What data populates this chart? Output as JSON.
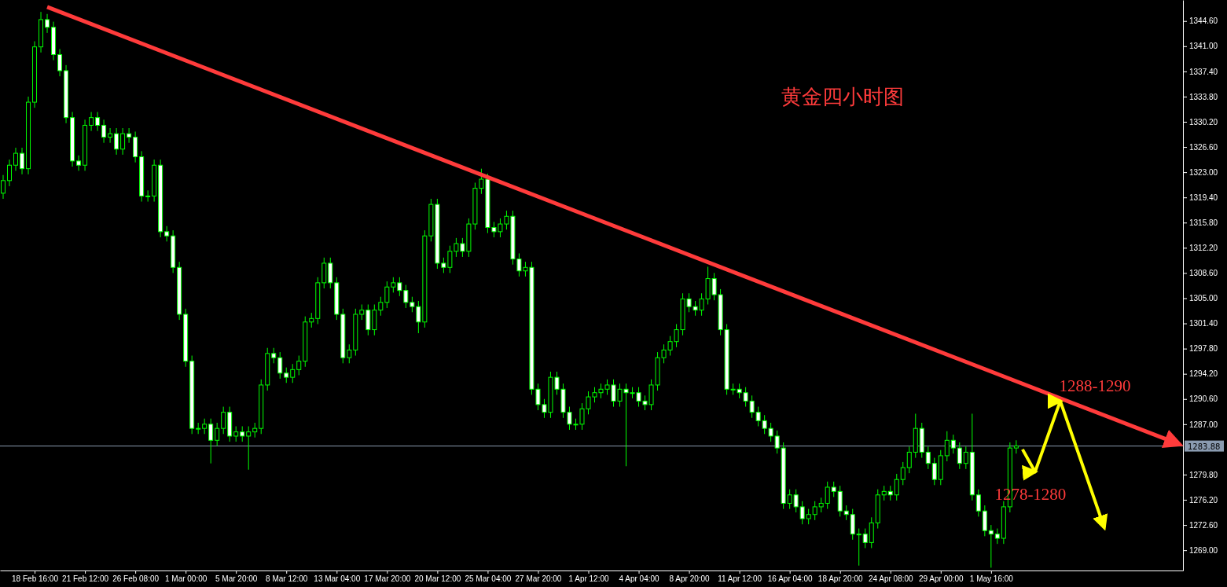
{
  "chart_data": {
    "type": "candlestick",
    "title": "黄金四小时图",
    "color": "#00ff00",
    "categories": [
      null,
      null,
      null,
      null,
      null,
      "18 Feb 16:00",
      null,
      null,
      null,
      null,
      null,
      null,
      null,
      "21 Feb 12:00",
      null,
      null,
      null,
      null,
      null,
      null,
      null,
      "26 Feb 08:00",
      null,
      null,
      null,
      null,
      null,
      null,
      null,
      "1 Mar 00:00",
      null,
      null,
      null,
      null,
      null,
      null,
      null,
      "5 Mar 20:00",
      null,
      null,
      null,
      null,
      null,
      null,
      null,
      "8 Mar 12:00",
      null,
      null,
      null,
      null,
      null,
      null,
      null,
      "13 Mar 04:00",
      null,
      null,
      null,
      null,
      null,
      null,
      null,
      "17 Mar 20:00",
      null,
      null,
      null,
      null,
      null,
      null,
      null,
      "20 Mar 12:00",
      null,
      null,
      null,
      null,
      null,
      null,
      null,
      "25 Mar 04:00",
      null,
      null,
      null,
      null,
      null,
      null,
      null,
      "27 Mar 20:00",
      null,
      null,
      null,
      null,
      null,
      null,
      null,
      "1 Apr 12:00",
      null,
      null,
      null,
      null,
      null,
      null,
      null,
      "4 Apr 04:00",
      null,
      null,
      null,
      null,
      null,
      null,
      null,
      "8 Apr 20:00",
      null,
      null,
      null,
      null,
      null,
      null,
      null,
      "11 Apr 12:00",
      null,
      null,
      null,
      null,
      null,
      null,
      null,
      "16 Apr 04:00",
      null,
      null,
      null,
      null,
      null,
      null,
      null,
      "18 Apr 20:00",
      null,
      null,
      null,
      null,
      null,
      null,
      null,
      "24 Apr 08:00",
      null,
      null,
      null,
      null,
      null,
      null,
      null,
      "29 Apr 00:00",
      null,
      null,
      null,
      null,
      null,
      null,
      null,
      "1 May 16:00",
      null,
      null,
      null,
      null,
      null,
      null,
      null,
      null,
      null,
      null,
      null,
      null,
      null,
      null,
      null,
      null,
      null,
      null,
      null,
      null,
      null,
      null,
      null,
      null,
      null,
      null,
      null,
      null,
      null,
      null
    ],
    "ohlc": [
      [
        1320.0,
        1322.6,
        1319.2,
        1321.8
      ],
      [
        1321.8,
        1324.8,
        1321.0,
        1324.0
      ],
      [
        1324.0,
        1326.5,
        1323.2,
        1325.7
      ],
      [
        1325.7,
        1326.5,
        1322.7,
        1323.5
      ],
      [
        1323.5,
        1333.8,
        1322.7,
        1333.0
      ],
      [
        1333.0,
        1341.7,
        1332.2,
        1340.9
      ],
      [
        1340.9,
        1345.9,
        1340.1,
        1344.8
      ],
      [
        1344.8,
        1345.6,
        1342.9,
        1343.7
      ],
      [
        1343.7,
        1344.5,
        1339.0,
        1339.8
      ],
      [
        1339.8,
        1340.6,
        1336.7,
        1337.5
      ],
      [
        1337.5,
        1338.3,
        1330.0,
        1330.8
      ],
      [
        1330.8,
        1331.6,
        1323.8,
        1324.6
      ],
      [
        1324.6,
        1325.4,
        1323.2,
        1324.0
      ],
      [
        1324.0,
        1330.5,
        1323.2,
        1329.7
      ],
      [
        1329.7,
        1331.6,
        1328.9,
        1330.8
      ],
      [
        1330.8,
        1331.6,
        1328.9,
        1329.7
      ],
      [
        1329.7,
        1330.5,
        1327.2,
        1328.0
      ],
      [
        1328.0,
        1329.3,
        1327.2,
        1328.5
      ],
      [
        1328.5,
        1329.3,
        1325.5,
        1326.3
      ],
      [
        1326.3,
        1329.3,
        1325.5,
        1328.5
      ],
      [
        1328.5,
        1329.3,
        1327.2,
        1328.0
      ],
      [
        1328.0,
        1328.8,
        1324.4,
        1325.2
      ],
      [
        1325.2,
        1326.0,
        1318.8,
        1319.6
      ],
      [
        1319.6,
        1320.4,
        1318.8,
        1319.6
      ],
      [
        1319.6,
        1324.8,
        1318.8,
        1324.0
      ],
      [
        1324.0,
        1324.8,
        1313.7,
        1314.5
      ],
      [
        1314.5,
        1315.3,
        1313.1,
        1313.9
      ],
      [
        1313.9,
        1314.7,
        1308.6,
        1309.4
      ],
      [
        1309.4,
        1310.2,
        1301.9,
        1302.7
      ],
      [
        1302.7,
        1303.5,
        1295.2,
        1296.0
      ],
      [
        1296.0,
        1296.8,
        1285.6,
        1286.4
      ],
      [
        1286.4,
        1287.2,
        1285.6,
        1286.4
      ],
      [
        1286.4,
        1287.8,
        1285.6,
        1287.0
      ],
      [
        1287.0,
        1287.8,
        1281.4,
        1284.7
      ],
      [
        1284.7,
        1287.2,
        1283.9,
        1286.4
      ],
      [
        1286.4,
        1289.5,
        1285.6,
        1288.7
      ],
      [
        1288.7,
        1289.5,
        1284.5,
        1285.3
      ],
      [
        1285.3,
        1286.7,
        1284.5,
        1285.9
      ],
      [
        1285.9,
        1286.7,
        1284.5,
        1285.3
      ],
      [
        1285.3,
        1286.7,
        1280.5,
        1285.9
      ],
      [
        1285.9,
        1287.2,
        1285.1,
        1286.4
      ],
      [
        1286.4,
        1293.4,
        1285.6,
        1292.6
      ],
      [
        1292.6,
        1297.9,
        1291.8,
        1297.1
      ],
      [
        1297.1,
        1297.9,
        1295.7,
        1296.5
      ],
      [
        1296.5,
        1297.3,
        1293.5,
        1294.3
      ],
      [
        1294.3,
        1295.1,
        1292.9,
        1293.7
      ],
      [
        1293.7,
        1295.6,
        1292.9,
        1294.8
      ],
      [
        1294.8,
        1296.8,
        1294.0,
        1296.0
      ],
      [
        1296.0,
        1302.4,
        1295.2,
        1301.6
      ],
      [
        1301.6,
        1302.9,
        1300.8,
        1302.1
      ],
      [
        1302.1,
        1308.0,
        1301.3,
        1307.2
      ],
      [
        1307.2,
        1310.8,
        1306.4,
        1310.0
      ],
      [
        1310.0,
        1310.8,
        1306.4,
        1307.2
      ],
      [
        1307.2,
        1308.0,
        1301.9,
        1302.7
      ],
      [
        1302.7,
        1303.5,
        1295.7,
        1296.5
      ],
      [
        1296.5,
        1298.4,
        1295.7,
        1297.6
      ],
      [
        1297.6,
        1303.5,
        1296.8,
        1302.7
      ],
      [
        1302.7,
        1304.1,
        1301.9,
        1303.3
      ],
      [
        1303.3,
        1304.1,
        1299.7,
        1300.5
      ],
      [
        1300.5,
        1304.1,
        1299.7,
        1303.3
      ],
      [
        1303.3,
        1305.2,
        1302.5,
        1304.4
      ],
      [
        1304.4,
        1307.4,
        1303.6,
        1306.6
      ],
      [
        1306.6,
        1308.0,
        1305.8,
        1307.2
      ],
      [
        1307.2,
        1308.0,
        1305.3,
        1306.1
      ],
      [
        1306.1,
        1306.9,
        1303.6,
        1304.4
      ],
      [
        1304.4,
        1305.2,
        1303.0,
        1303.8
      ],
      [
        1303.8,
        1304.6,
        1300.0,
        1301.6
      ],
      [
        1301.6,
        1314.7,
        1300.8,
        1313.9
      ],
      [
        1313.9,
        1319.2,
        1313.1,
        1318.4
      ],
      [
        1318.4,
        1319.2,
        1309.2,
        1310.0
      ],
      [
        1310.0,
        1310.8,
        1308.6,
        1309.4
      ],
      [
        1309.4,
        1312.5,
        1308.6,
        1311.7
      ],
      [
        1311.7,
        1313.6,
        1310.9,
        1312.8
      ],
      [
        1312.8,
        1313.6,
        1310.9,
        1311.7
      ],
      [
        1311.7,
        1316.4,
        1310.9,
        1315.6
      ],
      [
        1315.6,
        1321.5,
        1314.8,
        1320.7
      ],
      [
        1320.7,
        1323.5,
        1319.9,
        1322.0
      ],
      [
        1322.0,
        1322.8,
        1314.3,
        1315.1
      ],
      [
        1315.1,
        1315.9,
        1313.7,
        1314.5
      ],
      [
        1314.5,
        1316.4,
        1313.7,
        1315.6
      ],
      [
        1315.6,
        1317.5,
        1314.8,
        1316.7
      ],
      [
        1316.7,
        1317.5,
        1309.8,
        1310.6
      ],
      [
        1310.6,
        1311.4,
        1308.1,
        1308.9
      ],
      [
        1308.9,
        1310.2,
        1308.1,
        1309.4
      ],
      [
        1309.4,
        1310.2,
        1291.2,
        1292.0
      ],
      [
        1292.0,
        1292.8,
        1289.0,
        1289.8
      ],
      [
        1289.8,
        1290.6,
        1287.9,
        1288.7
      ],
      [
        1288.7,
        1294.5,
        1287.9,
        1293.7
      ],
      [
        1293.7,
        1294.5,
        1291.2,
        1292.0
      ],
      [
        1292.0,
        1292.8,
        1287.9,
        1288.7
      ],
      [
        1288.7,
        1289.5,
        1286.2,
        1287.0
      ],
      [
        1287.0,
        1287.8,
        1286.2,
        1287.0
      ],
      [
        1287.0,
        1290.0,
        1286.2,
        1289.2
      ],
      [
        1289.2,
        1291.7,
        1288.4,
        1290.9
      ],
      [
        1290.9,
        1292.3,
        1290.1,
        1291.5
      ],
      [
        1291.5,
        1292.8,
        1290.7,
        1292.0
      ],
      [
        1292.0,
        1293.4,
        1291.2,
        1292.6
      ],
      [
        1292.6,
        1293.4,
        1289.5,
        1290.3
      ],
      [
        1290.3,
        1292.8,
        1289.5,
        1292.0
      ],
      [
        1292.0,
        1292.8,
        1281.0,
        1291.5
      ],
      [
        1291.5,
        1292.3,
        1290.7,
        1291.5
      ],
      [
        1291.5,
        1292.3,
        1289.5,
        1290.3
      ],
      [
        1290.3,
        1291.1,
        1289.0,
        1289.8
      ],
      [
        1289.8,
        1293.4,
        1289.0,
        1292.6
      ],
      [
        1292.6,
        1297.3,
        1291.8,
        1296.5
      ],
      [
        1296.5,
        1298.4,
        1295.7,
        1297.6
      ],
      [
        1297.6,
        1299.6,
        1296.8,
        1298.8
      ],
      [
        1298.8,
        1301.3,
        1298.0,
        1300.5
      ],
      [
        1300.5,
        1305.7,
        1299.7,
        1304.9
      ],
      [
        1304.9,
        1305.7,
        1303.0,
        1303.8
      ],
      [
        1303.8,
        1304.6,
        1302.5,
        1303.3
      ],
      [
        1303.3,
        1305.7,
        1302.5,
        1304.9
      ],
      [
        1304.9,
        1309.5,
        1304.1,
        1307.8
      ],
      [
        1307.8,
        1308.6,
        1304.7,
        1305.5
      ],
      [
        1305.5,
        1306.3,
        1299.7,
        1300.5
      ],
      [
        1300.5,
        1301.3,
        1291.2,
        1292.0
      ],
      [
        1292.0,
        1292.8,
        1291.2,
        1292.0
      ],
      [
        1292.0,
        1292.8,
        1290.7,
        1291.5
      ],
      [
        1291.5,
        1292.3,
        1289.5,
        1290.3
      ],
      [
        1290.3,
        1291.1,
        1287.9,
        1288.7
      ],
      [
        1288.7,
        1289.5,
        1286.7,
        1287.5
      ],
      [
        1287.5,
        1288.3,
        1285.6,
        1286.4
      ],
      [
        1286.4,
        1287.2,
        1284.5,
        1285.3
      ],
      [
        1285.3,
        1286.1,
        1282.8,
        1283.6
      ],
      [
        1283.6,
        1284.4,
        1274.9,
        1275.7
      ],
      [
        1275.7,
        1277.7,
        1274.9,
        1276.9
      ],
      [
        1276.9,
        1277.7,
        1274.4,
        1275.2
      ],
      [
        1275.2,
        1276.0,
        1272.7,
        1273.5
      ],
      [
        1273.5,
        1274.9,
        1272.7,
        1274.1
      ],
      [
        1274.1,
        1276.0,
        1273.3,
        1275.2
      ],
      [
        1275.2,
        1276.5,
        1274.4,
        1275.7
      ],
      [
        1275.7,
        1278.8,
        1274.9,
        1278.0
      ],
      [
        1278.0,
        1278.8,
        1276.6,
        1277.4
      ],
      [
        1277.4,
        1278.2,
        1273.8,
        1274.6
      ],
      [
        1274.6,
        1275.4,
        1273.3,
        1274.1
      ],
      [
        1274.1,
        1274.9,
        1270.5,
        1271.3
      ],
      [
        1271.3,
        1272.1,
        1266.8,
        1271.3
      ],
      [
        1271.3,
        1272.1,
        1269.3,
        1270.1
      ],
      [
        1270.1,
        1273.7,
        1269.3,
        1272.9
      ],
      [
        1272.9,
        1277.7,
        1272.1,
        1276.9
      ],
      [
        1276.9,
        1278.2,
        1276.1,
        1277.4
      ],
      [
        1277.4,
        1278.2,
        1276.1,
        1276.9
      ],
      [
        1276.9,
        1279.9,
        1276.1,
        1279.1
      ],
      [
        1279.1,
        1281.6,
        1278.3,
        1280.8
      ],
      [
        1280.8,
        1283.8,
        1280.0,
        1283.0
      ],
      [
        1283.0,
        1288.5,
        1282.2,
        1286.4
      ],
      [
        1286.4,
        1287.2,
        1282.2,
        1283.0
      ],
      [
        1283.0,
        1283.8,
        1280.6,
        1281.4
      ],
      [
        1281.4,
        1282.2,
        1278.3,
        1279.1
      ],
      [
        1279.1,
        1283.3,
        1278.3,
        1282.5
      ],
      [
        1282.5,
        1286.0,
        1281.7,
        1284.7
      ],
      [
        1284.7,
        1285.5,
        1282.8,
        1283.6
      ],
      [
        1283.6,
        1284.4,
        1280.6,
        1281.4
      ],
      [
        1281.4,
        1283.8,
        1280.6,
        1283.0
      ],
      [
        1283.0,
        1288.5,
        1276.1,
        1276.9
      ],
      [
        1276.9,
        1277.7,
        1273.8,
        1274.6
      ],
      [
        1274.6,
        1275.4,
        1271.0,
        1271.8
      ],
      [
        1271.8,
        1272.6,
        1266.5,
        1271.3
      ],
      [
        1271.3,
        1272.1,
        1269.9,
        1270.7
      ],
      [
        1270.7,
        1276.0,
        1269.9,
        1275.2
      ],
      [
        1275.2,
        1284.4,
        1274.4,
        1283.6
      ],
      [
        1283.6,
        1284.7,
        1282.8,
        1283.9
      ],
      null,
      null,
      null,
      null,
      null,
      null,
      null,
      null,
      null,
      null,
      null,
      null,
      null,
      null,
      null,
      null,
      null,
      null,
      null,
      null,
      null,
      null,
      null,
      null,
      null,
      null
    ],
    "series": [
      {
        "type": "line",
        "color": "#ff3b3b",
        "values": [
          null,
          null,
          null,
          null,
          null,
          null,
          null,
          1346.6,
          null,
          null,
          null,
          null,
          null,
          null,
          null,
          null,
          null,
          null,
          null,
          null,
          null,
          null,
          null,
          null,
          null,
          null,
          null,
          null,
          null,
          null,
          null,
          null,
          null,
          null,
          null,
          null,
          null,
          null,
          null,
          null,
          null,
          null,
          null,
          null,
          null,
          null,
          null,
          null,
          null,
          null,
          null,
          null,
          null,
          null,
          null,
          null,
          null,
          null,
          null,
          null,
          null,
          null,
          null,
          null,
          null,
          null,
          null,
          null,
          null,
          null,
          null,
          null,
          null,
          null,
          null,
          null,
          null,
          null,
          null,
          null,
          null,
          null,
          null,
          null,
          null,
          null,
          null,
          null,
          null,
          null,
          null,
          null,
          null,
          null,
          null,
          null,
          null,
          null,
          null,
          null,
          null,
          null,
          null,
          null,
          null,
          null,
          null,
          null,
          null,
          null,
          null,
          null,
          null,
          null,
          null,
          null,
          null,
          null,
          null,
          null,
          null,
          null,
          null,
          null,
          null,
          null,
          null,
          null,
          null,
          null,
          null,
          null,
          null,
          null,
          null,
          null,
          null,
          null,
          null,
          null,
          null,
          null,
          null,
          null,
          null,
          null,
          null,
          null,
          null,
          null,
          null,
          null,
          null,
          null,
          null,
          null,
          null,
          null,
          null,
          null,
          null,
          null,
          null,
          null,
          null,
          null,
          null,
          null,
          null,
          null,
          null,
          null,
          null,
          null,
          null,
          null,
          null,
          null,
          null,
          null,
          null,
          null,
          null,
          null,
          null,
          null,
          null,
          1284.1
        ]
      },
      {
        "type": "line",
        "color": "#ffff00",
        "values": [
          null,
          null,
          null,
          null,
          null,
          null,
          null,
          null,
          null,
          null,
          null,
          null,
          null,
          null,
          null,
          null,
          null,
          null,
          null,
          null,
          null,
          null,
          null,
          null,
          null,
          null,
          null,
          null,
          null,
          null,
          null,
          null,
          null,
          null,
          null,
          null,
          null,
          null,
          null,
          null,
          null,
          null,
          null,
          null,
          null,
          null,
          null,
          null,
          null,
          null,
          null,
          null,
          null,
          null,
          null,
          null,
          null,
          null,
          null,
          null,
          null,
          null,
          null,
          null,
          null,
          null,
          null,
          null,
          null,
          null,
          null,
          null,
          null,
          null,
          null,
          null,
          null,
          null,
          null,
          null,
          null,
          null,
          null,
          null,
          null,
          null,
          null,
          null,
          null,
          null,
          null,
          null,
          null,
          null,
          null,
          null,
          null,
          null,
          null,
          null,
          null,
          null,
          null,
          null,
          null,
          null,
          null,
          null,
          null,
          null,
          null,
          null,
          null,
          null,
          null,
          null,
          null,
          null,
          null,
          null,
          null,
          null,
          null,
          null,
          null,
          null,
          null,
          null,
          null,
          null,
          null,
          null,
          null,
          null,
          null,
          null,
          null,
          null,
          null,
          null,
          null,
          null,
          null,
          null,
          null,
          null,
          null,
          null,
          null,
          null,
          null,
          null,
          null,
          null,
          null,
          null,
          null,
          null,
          null,
          null,
          null,
          null,
          1283.4,
          null,
          1280.2,
          null,
          null,
          null,
          1290.3,
          null,
          null,
          null,
          null,
          null,
          null,
          1272.2,
          null,
          null,
          null,
          null,
          null,
          null,
          null,
          null,
          null,
          null,
          null,
          null
        ]
      }
    ],
    "ylim": [
      1266.1,
      1347.6
    ],
    "yticks": [
      {
        "value": 1344.6,
        "label": "1344.60"
      },
      {
        "value": 1341,
        "label": "1341.00"
      },
      {
        "value": 1337.4,
        "label": "1337.40"
      },
      {
        "value": 1333.8,
        "label": "1333.80"
      },
      {
        "value": 1330.2,
        "label": "1330.20"
      },
      {
        "value": 1326.6,
        "label": "1326.60"
      },
      {
        "value": 1323,
        "label": "1323.00"
      },
      {
        "value": 1319.4,
        "label": "1319.40"
      },
      {
        "value": 1315.8,
        "label": "1315.80"
      },
      {
        "value": 1312.2,
        "label": "1312.20"
      },
      {
        "value": 1308.6,
        "label": "1308.60"
      },
      {
        "value": 1305,
        "label": "1305.00"
      },
      {
        "value": 1301.4,
        "label": "1301.40"
      },
      {
        "value": 1297.8,
        "label": "1297.80"
      },
      {
        "value": 1294.2,
        "label": "1294.20"
      },
      {
        "value": 1290.6,
        "label": "1290.60"
      },
      {
        "value": 1287,
        "label": "1287.00"
      },
      {
        "value": 1279.8,
        "label": "1279.80"
      },
      {
        "value": 1276.2,
        "label": "1276.20"
      },
      {
        "value": 1272.6,
        "label": "1272.60"
      },
      {
        "value": 1269,
        "label": "1269.00"
      }
    ],
    "ref_lines": [
      {
        "axis": "y",
        "value": 1283.88,
        "label": "1283.88",
        "color": "#8a9bb0"
      }
    ],
    "annotations": [
      "1288-1290",
      "1278-1280"
    ]
  }
}
